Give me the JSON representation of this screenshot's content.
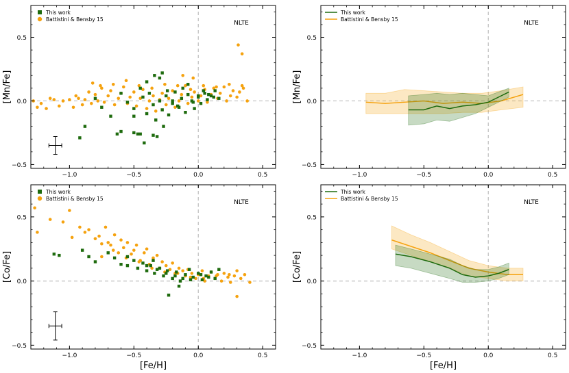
{
  "colors": {
    "this_work": "#1e6b0e",
    "battistini": "#f5a20f",
    "refline": "#bdbdbd"
  },
  "chart_data": [
    {
      "id": "mn-scatter",
      "type": "scatter",
      "ylabel": "[Mn/Fe]",
      "xlabel": "",
      "annotation": "NLTE",
      "xlim": [
        -1.3,
        0.6
      ],
      "ylim": [
        -0.53,
        0.75
      ],
      "xticks": [
        -1.0,
        -0.5,
        0.0,
        0.5
      ],
      "xtick_labels": [
        "−1.0",
        "−0.5",
        "0.0",
        "0.5"
      ],
      "yticks": [
        -0.5,
        0.0,
        0.5
      ],
      "ytick_labels": [
        "−0.5",
        "0.0",
        "0.5"
      ],
      "legend": [
        "This work",
        "Battistini & Bensby 15"
      ],
      "legend_position": "top-left",
      "error_bar": {
        "x": -1.11,
        "y": -0.35,
        "xerr": 0.05,
        "yerr": 0.07
      },
      "series": [
        {
          "name": "Battistini & Bensby 15",
          "x": [
            -1.28,
            -1.25,
            -1.22,
            -1.18,
            -1.15,
            -1.12,
            -1.08,
            -1.05,
            -1.0,
            -0.97,
            -0.95,
            -0.93,
            -0.9,
            -0.88,
            -0.85,
            -0.83,
            -0.8,
            -0.78,
            -0.75,
            -0.73,
            -0.7,
            -0.68,
            -0.65,
            -0.62,
            -0.6,
            -0.58,
            -0.55,
            -0.53,
            -0.5,
            -0.48,
            -0.45,
            -0.43,
            -0.4,
            -0.38,
            -0.35,
            -0.33,
            -0.3,
            -0.28,
            -0.25,
            -0.23,
            -0.2,
            -0.18,
            -0.15,
            -0.13,
            -0.1,
            -0.08,
            -0.05,
            -0.03,
            0.0,
            0.02,
            0.05,
            0.07,
            0.1,
            0.12,
            0.15,
            0.17,
            0.2,
            0.22,
            0.25,
            0.27,
            0.3,
            0.32,
            0.35,
            0.38,
            -0.82,
            -0.76,
            -0.66,
            -0.56,
            -0.46,
            -0.36,
            -0.26,
            -0.16,
            -0.06,
            0.04,
            0.14,
            0.24,
            0.34,
            0.31,
            0.34,
            -0.12,
            -0.04
          ],
          "y": [
            0.0,
            -0.05,
            -0.02,
            -0.06,
            0.02,
            0.01,
            -0.04,
            0.0,
            0.01,
            -0.05,
            0.04,
            0.02,
            -0.03,
            0.01,
            0.07,
            -0.02,
            0.05,
            0.0,
            0.1,
            -0.01,
            0.04,
            0.08,
            -0.03,
            0.02,
            0.06,
            0.11,
            -0.02,
            0.03,
            0.07,
            -0.04,
            0.02,
            0.09,
            -0.06,
            0.0,
            0.04,
            -0.08,
            0.01,
            0.06,
            -0.03,
            0.02,
            0.08,
            -0.05,
            0.0,
            0.05,
            0.12,
            -0.02,
            0.03,
            0.07,
            0.0,
            0.04,
            0.09,
            -0.01,
            0.05,
            0.1,
            0.02,
            0.06,
            0.11,
            0.0,
            0.04,
            0.08,
            0.03,
            0.07,
            0.1,
            0.0,
            0.14,
            0.12,
            0.13,
            0.16,
            0.12,
            0.1,
            0.13,
            0.12,
            0.09,
            0.12,
            0.11,
            0.13,
            0.12,
            0.44,
            0.37,
            0.2,
            0.18
          ]
        },
        {
          "name": "This work",
          "x": [
            -0.92,
            -0.88,
            -0.8,
            -0.75,
            -0.68,
            -0.6,
            -0.55,
            -0.5,
            -0.47,
            -0.43,
            -0.4,
            -0.38,
            -0.35,
            -0.33,
            -0.3,
            -0.28,
            -0.25,
            -0.23,
            -0.2,
            -0.18,
            -0.15,
            -0.13,
            -0.1,
            -0.08,
            -0.05,
            -0.03,
            0.0,
            0.02,
            0.05,
            0.07,
            0.1,
            0.13,
            0.16,
            -0.45,
            -0.4,
            -0.34,
            -0.28,
            -0.24,
            -0.2,
            -0.16,
            -0.12,
            -0.08,
            -0.04,
            0.0,
            0.04,
            0.08,
            0.12,
            -0.63,
            -0.5,
            -0.42,
            -0.32,
            -0.27,
            -0.6,
            -0.35,
            -0.3,
            -0.45,
            -0.5
          ],
          "y": [
            -0.29,
            -0.2,
            0.02,
            -0.05,
            -0.12,
            -0.24,
            -0.01,
            -0.06,
            -0.26,
            0.03,
            -0.1,
            0.06,
            -0.03,
            -0.15,
            0.0,
            -0.07,
            0.04,
            -0.11,
            -0.02,
            0.07,
            -0.05,
            0.02,
            -0.09,
            0.05,
            0.0,
            -0.06,
            0.03,
            -0.02,
            0.06,
            0.01,
            0.04,
            0.08,
            0.02,
            0.1,
            0.15,
            0.2,
            0.22,
            0.08,
            0.0,
            -0.04,
            0.1,
            0.13,
            -0.01,
            0.04,
            0.08,
            0.05,
            0.03,
            -0.26,
            -0.25,
            -0.33,
            -0.28,
            -0.2,
            0.06,
            -0.27,
            0.18,
            -0.26,
            -0.12
          ]
        }
      ]
    },
    {
      "id": "mn-trend",
      "type": "line",
      "ylabel": "[Mn/Fe]",
      "xlabel": "",
      "annotation": "NLTE",
      "xlim": [
        -1.3,
        0.6
      ],
      "ylim": [
        -0.53,
        0.75
      ],
      "xticks": [
        -1.0,
        -0.5,
        0.0,
        0.5
      ],
      "xtick_labels": [
        "−1.0",
        "−0.5",
        "0.0",
        "0.5"
      ],
      "yticks": [
        -0.5,
        0.0,
        0.5
      ],
      "ytick_labels": [
        "−0.5",
        "0.0",
        "0.5"
      ],
      "legend": [
        "This work",
        "Battistini & Bensby 15"
      ],
      "legend_position": "top-left",
      "series": [
        {
          "name": "Battistini & Bensby 15",
          "x": [
            -0.95,
            -0.8,
            -0.65,
            -0.5,
            -0.35,
            -0.2,
            -0.05,
            0.1,
            0.27
          ],
          "y": [
            -0.01,
            -0.02,
            -0.01,
            0.0,
            -0.02,
            -0.01,
            -0.02,
            0.0,
            0.05
          ],
          "lower": [
            -0.1,
            -0.1,
            -0.1,
            -0.1,
            -0.1,
            -0.09,
            -0.09,
            -0.07,
            -0.05
          ],
          "upper": [
            0.06,
            0.06,
            0.09,
            0.08,
            0.07,
            0.06,
            0.06,
            0.08,
            0.11
          ]
        },
        {
          "name": "This work",
          "x": [
            -0.62,
            -0.5,
            -0.4,
            -0.3,
            -0.2,
            -0.1,
            0.0,
            0.08,
            0.16
          ],
          "y": [
            -0.07,
            -0.07,
            -0.04,
            -0.06,
            -0.04,
            -0.03,
            -0.01,
            0.03,
            0.07
          ],
          "lower": [
            -0.19,
            -0.18,
            -0.15,
            -0.16,
            -0.13,
            -0.1,
            -0.05,
            -0.01,
            0.03
          ],
          "upper": [
            0.04,
            0.05,
            0.06,
            0.05,
            0.06,
            0.05,
            0.04,
            0.07,
            0.1
          ]
        }
      ]
    },
    {
      "id": "co-scatter",
      "type": "scatter",
      "ylabel": "[Co/Fe]",
      "xlabel": "[Fe/H]",
      "annotation": "NLTE",
      "xlim": [
        -1.3,
        0.6
      ],
      "ylim": [
        -0.53,
        0.75
      ],
      "xticks": [
        -1.0,
        -0.5,
        0.0,
        0.5
      ],
      "xtick_labels": [
        "−1.0",
        "−0.5",
        "0.0",
        "0.5"
      ],
      "yticks": [
        -0.5,
        0.0,
        0.5
      ],
      "ytick_labels": [
        "−0.5",
        "0.0",
        "0.5"
      ],
      "legend": [
        "This work",
        "Battistini & Bensby 15"
      ],
      "legend_position": "top-left",
      "error_bar": {
        "x": -1.11,
        "y": -0.35,
        "xerr": 0.05,
        "yerr": 0.11
      },
      "series": [
        {
          "name": "Battistini & Bensby 15",
          "x": [
            -1.27,
            -1.25,
            -1.15,
            -1.05,
            -1.0,
            -0.98,
            -0.92,
            -0.88,
            -0.85,
            -0.8,
            -0.77,
            -0.75,
            -0.72,
            -0.7,
            -0.68,
            -0.65,
            -0.62,
            -0.6,
            -0.58,
            -0.55,
            -0.52,
            -0.5,
            -0.48,
            -0.45,
            -0.42,
            -0.4,
            -0.38,
            -0.35,
            -0.32,
            -0.3,
            -0.28,
            -0.25,
            -0.22,
            -0.2,
            -0.18,
            -0.15,
            -0.12,
            -0.1,
            -0.08,
            -0.05,
            -0.02,
            0.0,
            0.03,
            0.05,
            0.08,
            0.1,
            0.13,
            0.15,
            0.18,
            0.2,
            0.23,
            0.25,
            0.28,
            0.3,
            0.33,
            0.36,
            0.4,
            -0.75,
            -0.66,
            -0.56,
            -0.46,
            -0.36,
            -0.26,
            -0.16,
            -0.06,
            0.04,
            0.14,
            0.24,
            0.3
          ],
          "y": [
            0.57,
            0.38,
            0.48,
            0.46,
            0.55,
            0.34,
            0.42,
            0.38,
            0.4,
            0.33,
            0.35,
            0.29,
            0.42,
            0.3,
            0.28,
            0.36,
            0.22,
            0.32,
            0.26,
            0.3,
            0.21,
            0.24,
            0.28,
            0.16,
            0.22,
            0.25,
            0.13,
            0.18,
            0.2,
            0.1,
            0.15,
            0.12,
            0.09,
            0.14,
            0.06,
            0.1,
            0.08,
            0.04,
            0.09,
            0.06,
            0.02,
            0.05,
            0.08,
            0.0,
            0.04,
            0.07,
            0.02,
            0.05,
            0.0,
            0.06,
            0.03,
            -0.01,
            0.04,
            0.08,
            0.02,
            0.05,
            -0.01,
            0.19,
            0.24,
            0.18,
            0.15,
            0.1,
            0.07,
            0.06,
            0.03,
            0.02,
            0.04,
            0.05,
            -0.12
          ]
        },
        {
          "name": "This work",
          "x": [
            -1.12,
            -1.08,
            -0.9,
            -0.85,
            -0.8,
            -0.7,
            -0.65,
            -0.6,
            -0.55,
            -0.5,
            -0.47,
            -0.43,
            -0.4,
            -0.37,
            -0.34,
            -0.3,
            -0.27,
            -0.24,
            -0.2,
            -0.17,
            -0.14,
            -0.1,
            -0.07,
            -0.04,
            0.0,
            0.03,
            0.06,
            0.1,
            0.13,
            0.16,
            -0.4,
            -0.32,
            -0.25,
            -0.18,
            -0.12,
            -0.06,
            0.02,
            0.08,
            -0.23,
            -0.35,
            -0.55,
            -0.15
          ],
          "y": [
            0.21,
            0.2,
            0.24,
            0.19,
            0.15,
            0.22,
            0.18,
            0.13,
            0.19,
            0.16,
            0.1,
            0.14,
            0.08,
            0.12,
            0.06,
            0.1,
            0.04,
            0.08,
            0.02,
            0.07,
            0.0,
            0.05,
            0.09,
            0.03,
            0.06,
            0.01,
            0.04,
            0.07,
            0.02,
            0.09,
            0.12,
            0.09,
            0.06,
            0.04,
            0.02,
            0.01,
            0.05,
            0.03,
            -0.11,
            0.16,
            0.12,
            -0.04
          ]
        }
      ]
    },
    {
      "id": "co-trend",
      "type": "line",
      "ylabel": "[Co/Fe]",
      "xlabel": "[Fe/H]",
      "annotation": "NLTE",
      "xlim": [
        -1.3,
        0.6
      ],
      "ylim": [
        -0.53,
        0.75
      ],
      "xticks": [
        -1.0,
        -0.5,
        0.0,
        0.5
      ],
      "xtick_labels": [
        "−1.0",
        "−0.5",
        "0.0",
        "0.5"
      ],
      "yticks": [
        -0.5,
        0.0,
        0.5
      ],
      "ytick_labels": [
        "−0.5",
        "0.0",
        "0.5"
      ],
      "legend": [
        "This work",
        "Battistini & Bensby 15"
      ],
      "legend_position": "top-left",
      "series": [
        {
          "name": "Battistini & Bensby 15",
          "x": [
            -0.75,
            -0.6,
            -0.45,
            -0.3,
            -0.15,
            0.0,
            0.15,
            0.27
          ],
          "y": [
            0.32,
            0.27,
            0.22,
            0.16,
            0.1,
            0.07,
            0.05,
            0.05
          ],
          "lower": [
            0.25,
            0.2,
            0.15,
            0.1,
            0.04,
            0.02,
            0.0,
            0.0
          ],
          "upper": [
            0.43,
            0.36,
            0.3,
            0.23,
            0.16,
            0.12,
            0.1,
            0.1
          ]
        },
        {
          "name": "This work",
          "x": [
            -0.72,
            -0.6,
            -0.45,
            -0.3,
            -0.2,
            -0.1,
            0.0,
            0.08,
            0.16
          ],
          "y": [
            0.21,
            0.19,
            0.15,
            0.1,
            0.05,
            0.03,
            0.04,
            0.06,
            0.09
          ],
          "lower": [
            0.12,
            0.1,
            0.06,
            0.02,
            -0.01,
            -0.01,
            0.0,
            0.02,
            0.05
          ],
          "upper": [
            0.28,
            0.25,
            0.21,
            0.17,
            0.12,
            0.09,
            0.09,
            0.11,
            0.14
          ]
        }
      ]
    }
  ]
}
